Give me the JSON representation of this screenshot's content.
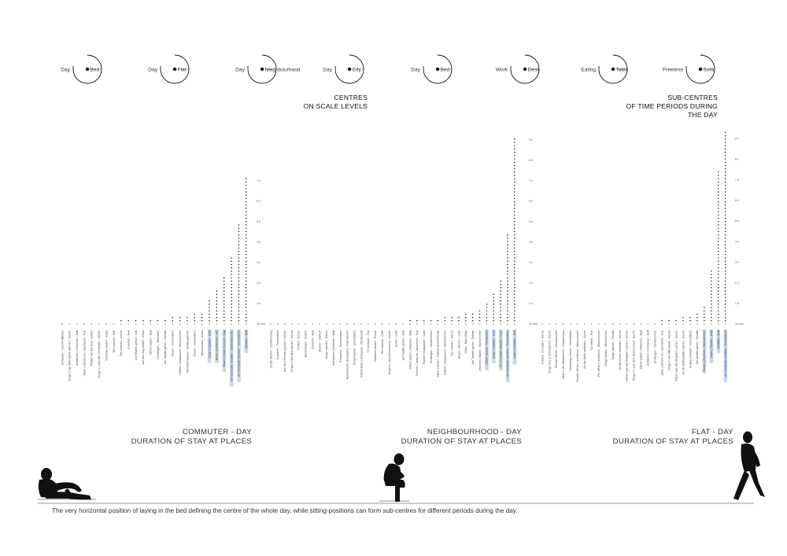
{
  "clocks": [
    {
      "left": "Day",
      "right": "Bed"
    },
    {
      "left": "Day",
      "right": "Flat"
    },
    {
      "left": "Day",
      "right": "Neighbourhood"
    },
    {
      "left": "Day",
      "right": "City"
    },
    {
      "left": "Day",
      "right": "Bed"
    },
    {
      "left": "Work",
      "right": "Desk"
    },
    {
      "left": "Eating",
      "right": "Table"
    },
    {
      "left": "Freetime",
      "right": "Sofa"
    }
  ],
  "headings": {
    "centres": [
      "CENTRES",
      "ON SCALE LEVELS"
    ],
    "subcentres": [
      "SUB-CENTRES",
      "OF TIME PERIODS DURING",
      "THE DAY"
    ]
  },
  "chart_data": [
    {
      "type": "bar",
      "title": [
        "COMMUTER - DAY",
        "DURATION OF STAY AT PLACES"
      ],
      "unit_note": "dotted columns, height = duration of stay",
      "y_ticks": [
        "10 min",
        "1 h",
        "2 h",
        "3 h",
        "4 h",
        "5 h",
        "6 h",
        "7 h"
      ],
      "ylim": [
        0,
        8
      ],
      "categories": [
        "Einkaufen - Kochen/Bäcker",
        "Dinge in der Mikrowelle wärmen - Küche",
        "Aufstehen | Umziehen - Bett",
        "Jacke | Schuhe an | ausziehen - Flur",
        "Warten auf den Bus - Außen",
        "Dinge in | aus den Schränken - Küche",
        "Getränke kaufen - Kiosk",
        "Tee machen - WK",
        "Tee machen - Küche",
        "Duschen - Bad",
        "Auf Warten gehen - WK",
        "Auf den Zug warten - Kiosk",
        "Zähne putzen - Bad",
        "Umsteigen - Steinbahn",
        "Auf Toilette gehen - Toilette",
        "Essen - Küchentisch",
        "Packen | Auspacken - Wohnzimmer",
        "Gleisfahrt planen - Elektroauto AC",
        "Essen - Schreibtisch",
        "Bücherlesen - Autos",
        "Lesen | Spielen - Sofa",
        "Essen | Aufräumen - AC",
        "Essen | Lesen | Lernen - Zug",
        "Am Computer arbeiten - Schreibtisch AC",
        "Am Computer arbeiten - Schreibtisch",
        "Schlafen - Bett"
      ],
      "values": [
        0.08,
        0.08,
        0.08,
        0.1,
        0.12,
        0.12,
        0.15,
        0.15,
        0.18,
        0.2,
        0.2,
        0.22,
        0.25,
        0.25,
        0.3,
        0.35,
        0.35,
        0.45,
        0.5,
        0.6,
        1.2,
        1.7,
        2.4,
        3.3,
        4.9,
        7.2
      ],
      "highlight": [
        20,
        21,
        22,
        23,
        24,
        25
      ]
    },
    {
      "type": "bar",
      "title": [
        "NEIGHBOURHOOD - DAY",
        "DURATION OF STAY AT PLACES"
      ],
      "unit_note": "dotted columns, height = duration of stay",
      "y_ticks": [
        "10 min",
        "1 h",
        "2 h",
        "3 h",
        "4 h",
        "5 h",
        "6 h",
        "7 h",
        "8 h",
        "9 h"
      ],
      "ylim": [
        0,
        9.5
      ],
      "categories": [
        "Dinge räumen - Schlafzimmer",
        "Duschen - Schreibtisch",
        "Aus dem Fenster gucken - Küche",
        "Dinge in den Müll werfen - Küche",
        "Trinken - Küche",
        "Bücherlesen - Zudem",
        "Duschen - Bad",
        "Bücher - Café/ch",
        "Dinge räumen - Küche",
        "Aufräumen | Anziehen - Bett",
        "Einkaufen - Schrankraum",
        "Bücherlesen | Einkaufen - Café Nevers",
        "Dinge kaufen - Schreibtisch",
        "Bücherlesen | Einkaufen - Restaurant",
        "TV schauen - Flur",
        "Getränke kaufen - Küche",
        "Tee machen - Café",
        "Dinge in | aus Kühlschrank - Küche",
        "Essen - Café",
        "Auf Toilette gehen - Bad",
        "Zähne putzen | Waschen - Bad",
        "Schuhe | Jacke an | ausziehen - Flur",
        "Packen | Auspacken - Café",
        "Umsteigen - Schlafzimmer",
        "Sitzen | Essen - Dubois Druckerheide",
        "Packen | Auspacken - Wohnzimmer",
        "Tee machen - Küche",
        "Essen - Kochen - Café",
        "Video - Bank Platz",
        "Auf Toilette gehen - Toilette",
        "Zeichnen | Malen - Wohnzimmer",
        "Sitzen | Essen - Restaurant",
        "Essen | Spielen - Sofa",
        "Am Computer arbeiten - Café",
        "Am Computer arbeiten - Schreibtisch",
        "Lesen | Schlafen - Bett"
      ],
      "values": [
        0.02,
        0.03,
        0.03,
        0.04,
        0.04,
        0.05,
        0.05,
        0.06,
        0.07,
        0.07,
        0.08,
        0.08,
        0.09,
        0.1,
        0.1,
        0.1,
        0.12,
        0.12,
        0.14,
        0.15,
        0.17,
        0.2,
        0.22,
        0.25,
        0.3,
        0.35,
        0.38,
        0.45,
        0.5,
        0.6,
        0.7,
        1.0,
        1.5,
        2.2,
        4.5,
        9.1
      ],
      "highlight": [
        31,
        32,
        33,
        34,
        35
      ]
    },
    {
      "type": "bar",
      "title": [
        "FLAT - DAY",
        "DURATION OF STAY AT PLACES"
      ],
      "unit_note": "dotted columns, height = duration of stay",
      "y_ticks": [
        "10 min",
        "1 h",
        "2 h",
        "3 h",
        "4 h",
        "5 h",
        "6 h",
        "7 h",
        "8 h",
        "9 h"
      ],
      "ylim": [
        0,
        9.5
      ],
      "categories": [
        "Kaufen, ein Laden - Küche",
        "Dinge ins | in Schreibtisch - Küche",
        "Fenster öffnen - Schlafzimmer",
        "Müll in den Müllbereich - Treppenhaus",
        "Sortierung ordnen - Schreibtisch",
        "Fenster öffnen | schließen - Wohnzimmer",
        "An der Kaffe bestellen - Küche",
        "Tür öffnen - Flur",
        "Für öffnen | schließen - Wohnzimmer",
        "Dinge kaufen - Wohnzimmer",
        "Dinge räumen - Toilette",
        "An der Essen bestellen - Küche",
        "Waren aus den Regalen suchen - Küche",
        "Dinge in | aus dem Kühlschrank - Küche",
        "Zähne putzen | Waschen - Bad",
        "Aufstehen | Umziehen - Bett",
        "Umsteigen - Schlafzimmer",
        "Jacke | Schuhe an | ausziehen - Flur",
        "Dinge in der Mikrowelle - Küche",
        "Waren aus den Regalen suchen - Küche",
        "An der Kaffeehälfte suchen - Küche",
        "Analog arbeiten - Schreibtisch",
        "Auf Toilette gehen - Toilette",
        "Essen | Zeichnen - Wohnzimmer",
        "Lesen | Spielen - Sofa",
        "Schlafen - Bett",
        "Am Computer arbeiten - Schreibtisch"
      ],
      "values": [
        0.02,
        0.02,
        0.03,
        0.03,
        0.04,
        0.04,
        0.05,
        0.05,
        0.06,
        0.06,
        0.07,
        0.07,
        0.08,
        0.1,
        0.1,
        0.12,
        0.15,
        0.18,
        0.22,
        0.28,
        0.35,
        0.45,
        0.6,
        0.95,
        2.6,
        7.5,
        9.3
      ],
      "highlight": [
        23,
        24,
        25,
        26
      ]
    }
  ],
  "caption": "The very horizontal position of laying in the bed defining the centre of the whole day, while sitting-positions can form sub-centres for different periods during the day."
}
